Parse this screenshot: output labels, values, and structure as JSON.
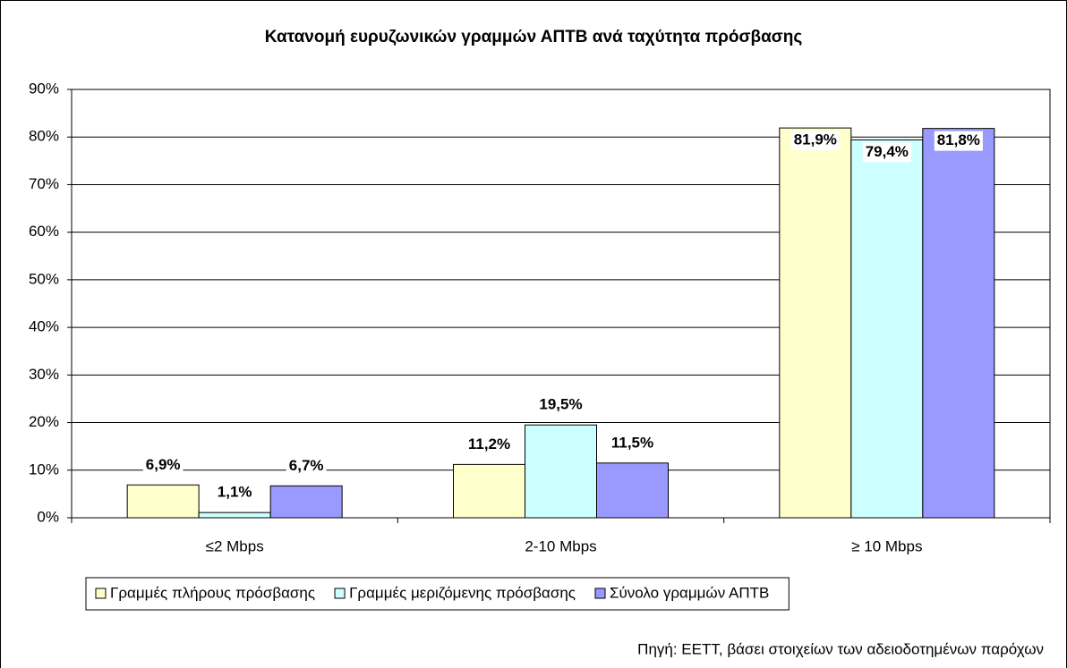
{
  "chart_data": {
    "type": "bar",
    "title": "Κατανομή ευρυζωνικών γραμμών ΑΠΤΒ ανά ταχύτητα πρόσβασης",
    "categories": [
      "≤2 Mbps",
      "2-10 Mbps",
      "≥ 10 Mbps"
    ],
    "series": [
      {
        "name": "Γραμμές πλήρους πρόσβασης",
        "color": "#ffffcc",
        "values": [
          6.9,
          11.2,
          81.9
        ],
        "value_labels": [
          "6,9%",
          "11,2%",
          "81,9%"
        ]
      },
      {
        "name": "Γραμμές μεριζόμενης πρόσβασης",
        "color": "#ccffff",
        "values": [
          1.1,
          19.5,
          79.4
        ],
        "value_labels": [
          "1,1%",
          "19,5%",
          "79,4%"
        ]
      },
      {
        "name": "Σύνολο γραμμών ΑΠΤΒ",
        "color": "#9999ff",
        "values": [
          6.7,
          11.5,
          81.8
        ],
        "value_labels": [
          "6,7%",
          "11,5%",
          "81,8%"
        ]
      }
    ],
    "ylim": [
      0,
      90
    ],
    "yticks": [
      {
        "value": 0,
        "label": "0%"
      },
      {
        "value": 10,
        "label": "10%"
      },
      {
        "value": 20,
        "label": "20%"
      },
      {
        "value": 30,
        "label": "30%"
      },
      {
        "value": 40,
        "label": "40%"
      },
      {
        "value": 50,
        "label": "50%"
      },
      {
        "value": 60,
        "label": "60%"
      },
      {
        "value": 70,
        "label": "70%"
      },
      {
        "value": 80,
        "label": "80%"
      },
      {
        "value": 90,
        "label": "90%"
      }
    ],
    "grid": true,
    "legend": "bottom",
    "source": "Πηγή: ΕΕΤΤ, βάσει στοιχείων των αδειοδοτημένων παρόχων"
  }
}
